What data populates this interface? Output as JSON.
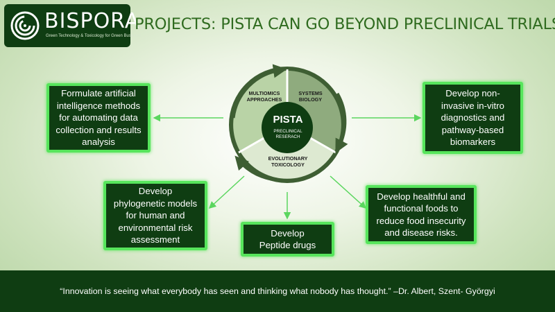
{
  "logo": {
    "name": "BISPORA",
    "tagline": "Green Technology & Toxicology for Green Business"
  },
  "title": "PROJECTS: PISTA CAN GO BEYOND PRECLINICAL TRIALS",
  "cycle": {
    "center_title": "PISTA",
    "center_subtitle": [
      "PRECLINICAL",
      "RESERACH"
    ],
    "segments": [
      {
        "name": "multiomics",
        "lines": [
          "MULTIOMICS",
          "APPROACHES"
        ]
      },
      {
        "name": "systems-biology",
        "lines": [
          "SYSTEMS",
          "BIOLOGY"
        ]
      },
      {
        "name": "evolutionary-toxicology",
        "lines": [
          "EVOLUTIONARY",
          "TOXICOLOGY"
        ]
      }
    ]
  },
  "boxes": {
    "ai": [
      "Formulate artificial",
      "intelligence methods",
      "for automating data",
      "collection and results",
      "analysis"
    ],
    "diagnostics": [
      "Develop non-",
      "invasive in-vitro",
      "diagnostics and",
      "pathway-based",
      "biomarkers"
    ],
    "phylogenetic": [
      "Develop",
      "phylogenetic models",
      "for human and",
      "environmental risk",
      "assessment"
    ],
    "peptide": [
      "Develop",
      "Peptide drugs"
    ],
    "foods": [
      "Develop healthful and",
      "functional foods to",
      "reduce food insecurity",
      "and disease risks."
    ]
  },
  "footer": "“Innovation is seeing what everybody has seen and thinking what nobody has thought.” –Dr. Albert, Szent- Györgyi",
  "colors": {
    "dark_green": "#0f3d12",
    "bright_green": "#57e55c",
    "title_green": "#2f6b1f",
    "segment_light": "#b9d3a6",
    "segment_mid": "#8fab7e",
    "ring": "#3e5e33"
  }
}
